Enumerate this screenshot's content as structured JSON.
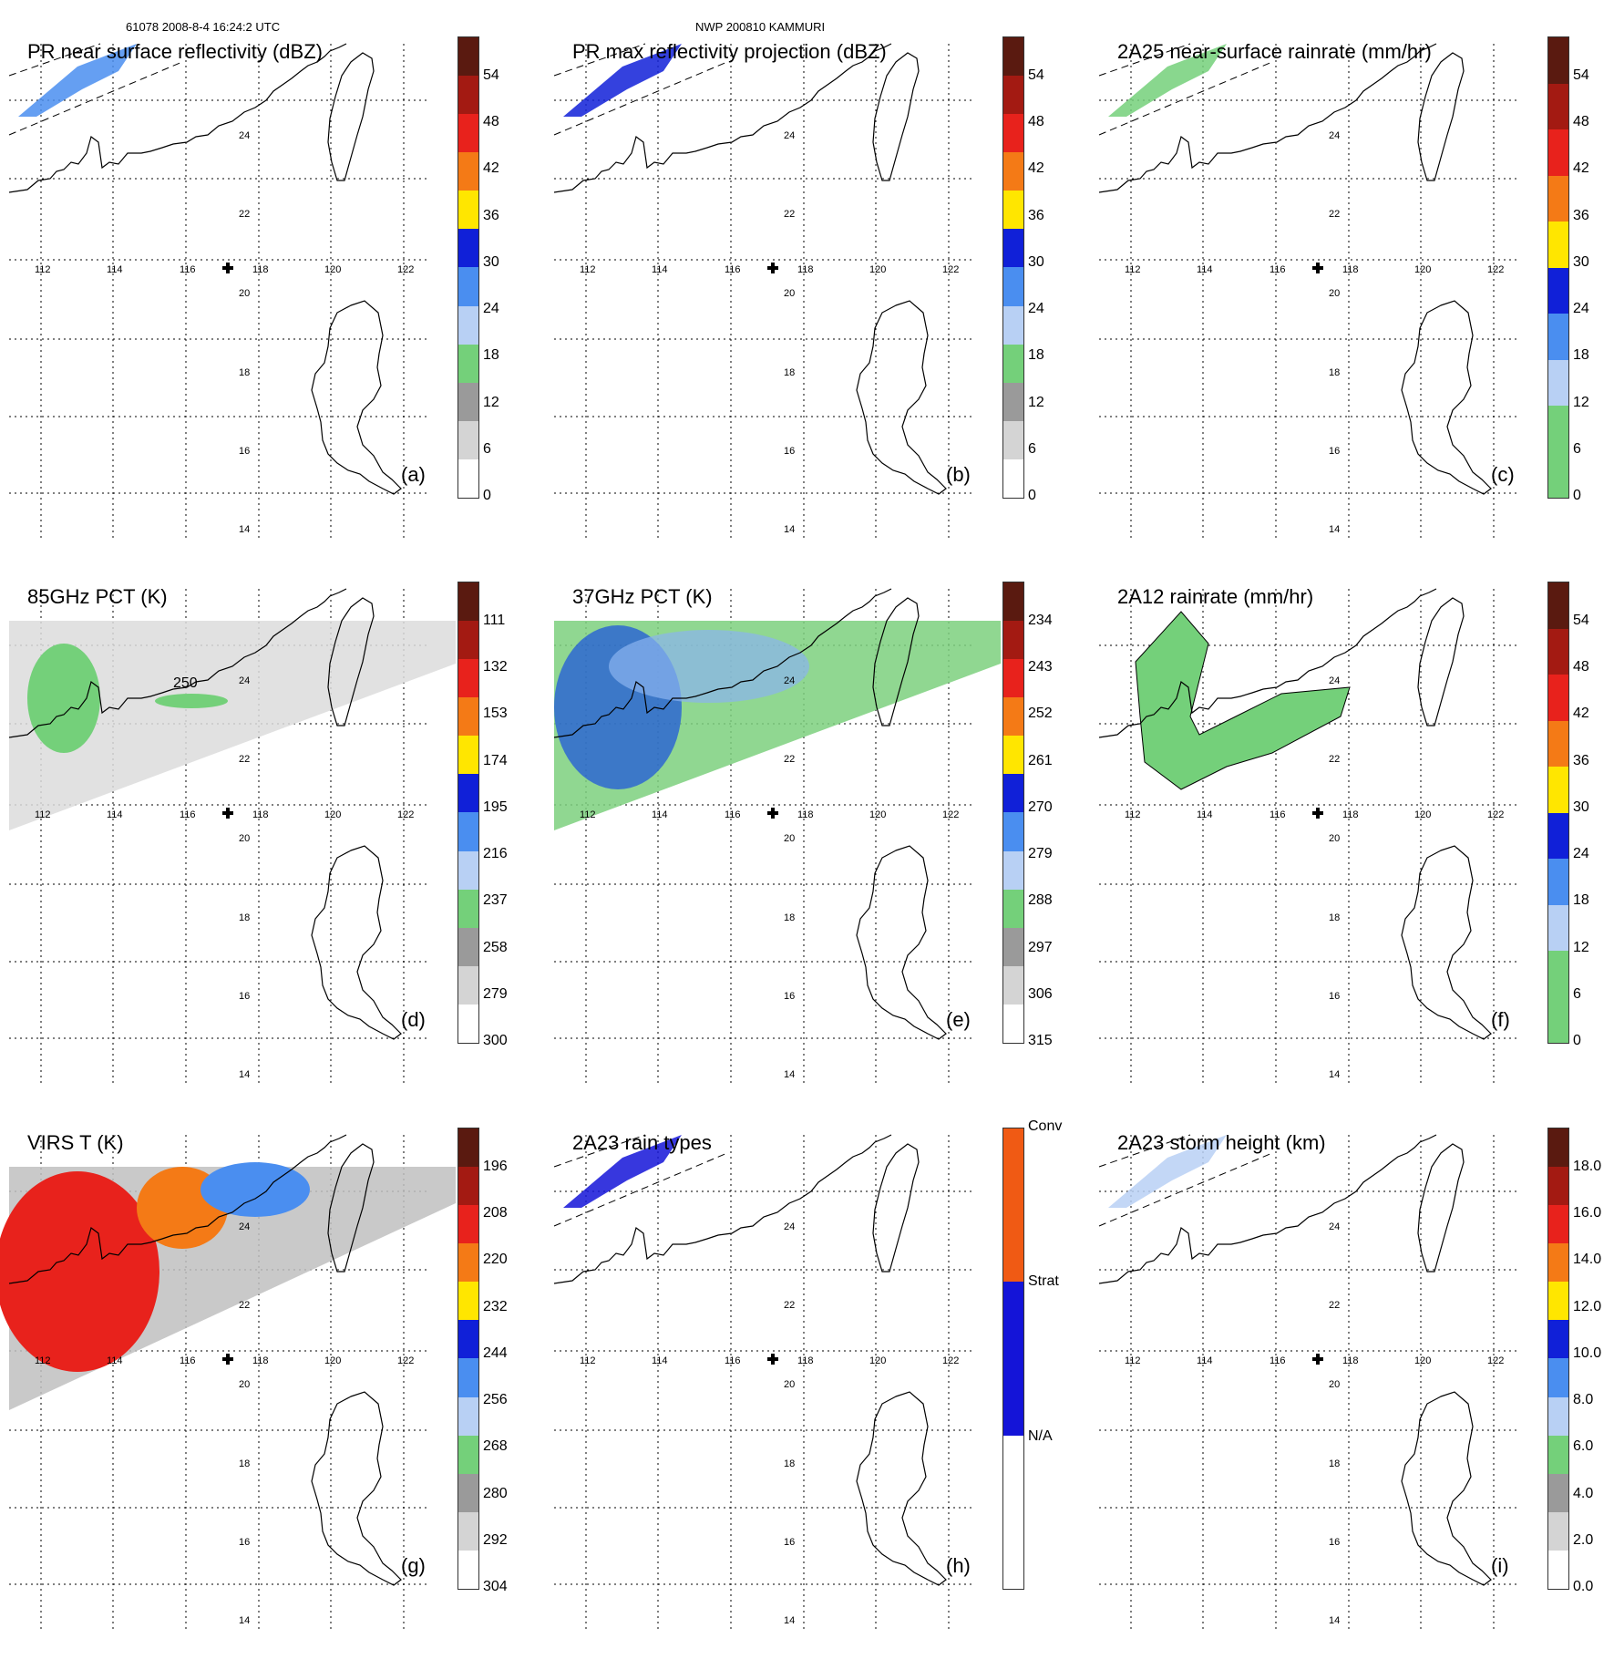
{
  "header": {
    "orbit": "61078 2008-8-4 16:24:2 UTC",
    "storm": "NWP 200810 KAMMURI"
  },
  "map": {
    "lon_labels": [
      "112",
      "114",
      "116",
      "118",
      "120",
      "122"
    ],
    "lat_labels": [
      "24",
      "22",
      "20",
      "18",
      "16",
      "14"
    ],
    "marker": "plus-icon"
  },
  "panels": [
    {
      "id": "a",
      "title": "PR near surface reflectivity (dBZ)",
      "label": "(a)",
      "ticks": [
        "54",
        "48",
        "42",
        "36",
        "30",
        "24",
        "18",
        "12",
        "6",
        "0"
      ],
      "palette": "dbz"
    },
    {
      "id": "b",
      "title": "PR max reflectivity projection (dBZ)",
      "label": "(b)",
      "ticks": [
        "54",
        "48",
        "42",
        "36",
        "30",
        "24",
        "18",
        "12",
        "6",
        "0"
      ],
      "palette": "dbz"
    },
    {
      "id": "c",
      "title": "2A25 near-surface rainrate (mm/hr)",
      "label": "(c)",
      "ticks": [
        "54",
        "48",
        "42",
        "36",
        "30",
        "24",
        "18",
        "12",
        "6",
        "0"
      ],
      "palette": "rain"
    },
    {
      "id": "d",
      "title": "85GHz PCT (K)",
      "label": "(d)",
      "ticks": [
        "111",
        "132",
        "153",
        "174",
        "195",
        "216",
        "237",
        "258",
        "279",
        "300"
      ],
      "palette": "dbz",
      "annotation": "250"
    },
    {
      "id": "e",
      "title": "37GHz PCT (K)",
      "label": "(e)",
      "ticks": [
        "234",
        "243",
        "252",
        "261",
        "270",
        "279",
        "288",
        "297",
        "306",
        "315"
      ],
      "palette": "dbz"
    },
    {
      "id": "f",
      "title": "2A12 rainrate (mm/hr)",
      "label": "(f)",
      "ticks": [
        "54",
        "48",
        "42",
        "36",
        "30",
        "24",
        "18",
        "12",
        "6",
        "0"
      ],
      "palette": "rain"
    },
    {
      "id": "g",
      "title": "VIRS T    (K)",
      "label": "(g)",
      "ticks": [
        "196",
        "208",
        "220",
        "232",
        "244",
        "256",
        "268",
        "280",
        "292",
        "304"
      ],
      "palette": "dbz"
    },
    {
      "id": "h",
      "title": "2A23 rain types",
      "label": "(h)",
      "ticks": [
        "Conv",
        "Strat",
        "N/A"
      ],
      "palette": "types"
    },
    {
      "id": "i",
      "title": "2A23 storm height (km)",
      "label": "(i)",
      "ticks": [
        "18.0",
        "16.0",
        "14.0",
        "12.0",
        "10.0",
        "8.0",
        "6.0",
        "4.0",
        "2.0",
        "0.0"
      ],
      "palette": "dbz"
    }
  ]
}
